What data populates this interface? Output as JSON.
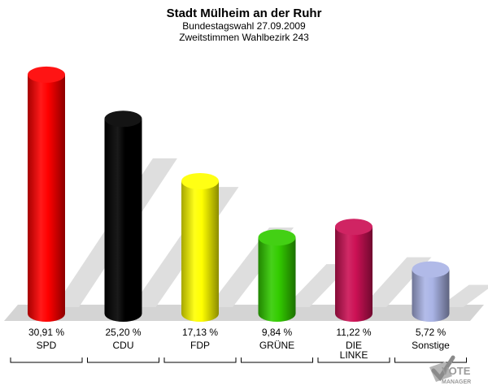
{
  "chart_data": {
    "type": "bar",
    "title": "Stadt Mülheim an der Ruhr",
    "subtitle": "Bundestagswahl 27.09.2009",
    "subtitle2": "Zweitstimmen Wahlbezirk 243",
    "categories": [
      "SPD",
      "CDU",
      "FDP",
      "GRÜNE",
      "DIE LINKE",
      "Sonstige"
    ],
    "category_lines": [
      [
        "SPD"
      ],
      [
        "CDU"
      ],
      [
        "FDP"
      ],
      [
        "GRÜNE"
      ],
      [
        "DIE",
        "LINKE"
      ],
      [
        "Sonstige"
      ]
    ],
    "values": [
      30.91,
      25.2,
      17.13,
      9.84,
      11.22,
      5.72
    ],
    "value_labels": [
      "30,91 %",
      "25,20 %",
      "17,13 %",
      "9,84 %",
      "11,22 %",
      "5,72 %"
    ],
    "colors": [
      "#ff0000",
      "#000000",
      "#ffff00",
      "#33cc00",
      "#cc1155",
      "#aab4e6"
    ],
    "ylim": [
      0,
      33
    ],
    "grid": false,
    "legend": "none"
  },
  "logo": {
    "line1": "VOTE",
    "line2": "MANAGER",
    "icon": "checkmark-ballot-icon"
  }
}
